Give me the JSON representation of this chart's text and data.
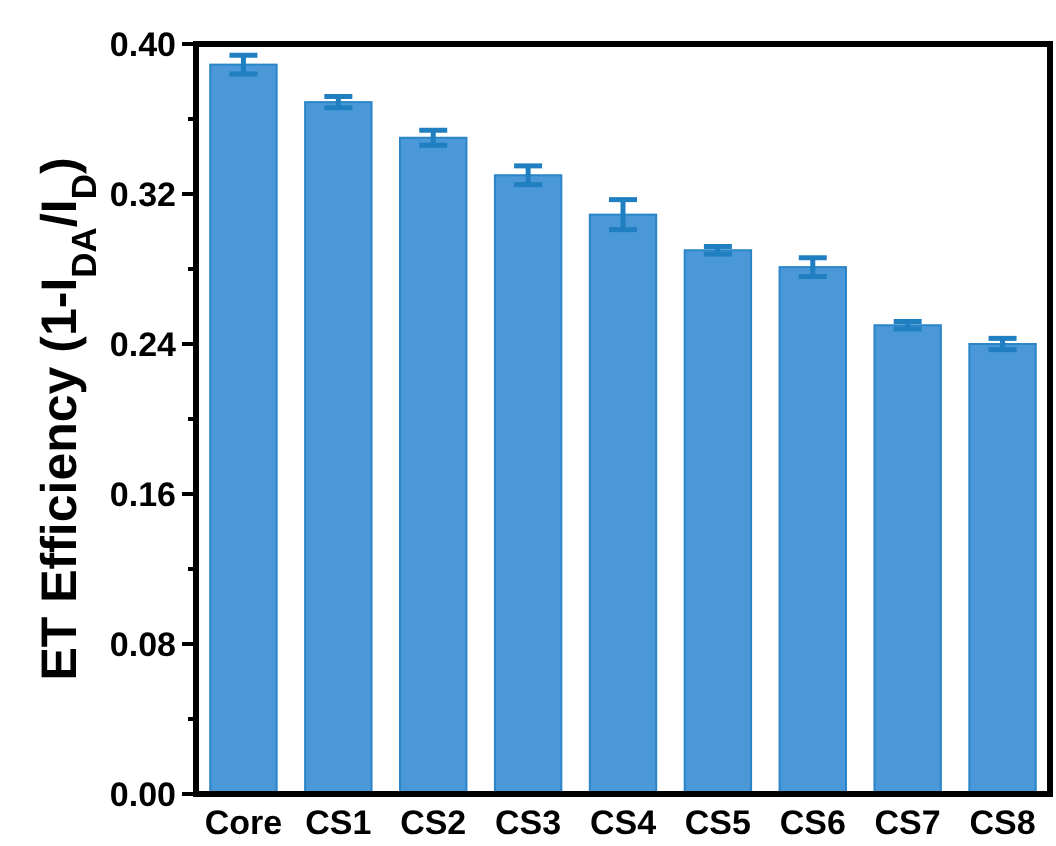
{
  "chart_data": {
    "type": "bar",
    "ylabel": "ET Efficiency (1-I$_{DA}$/I$_{D}$)",
    "categories": [
      "Core",
      "CS1",
      "CS2",
      "CS3",
      "CS4",
      "CS5",
      "CS6",
      "CS7",
      "CS8"
    ],
    "series": [
      {
        "color": "#4a98d8",
        "values": [
          0.389,
          0.369,
          0.35,
          0.33,
          0.309,
          0.29,
          0.281,
          0.25,
          0.24
        ],
        "errors": [
          0.005,
          0.003,
          0.004,
          0.005,
          0.008,
          0.002,
          0.005,
          0.002,
          0.003
        ]
      }
    ],
    "ylim": [
      0,
      0.4
    ],
    "yticks": [
      {
        "value": 0,
        "label": "0.00"
      },
      {
        "value": 0.04,
        "label": null
      },
      {
        "value": 0.08,
        "label": "0.08"
      },
      {
        "value": 0.12,
        "label": null
      },
      {
        "value": 0.16,
        "label": "0.16"
      },
      {
        "value": 0.2,
        "label": null
      },
      {
        "value": 0.24,
        "label": "0.24"
      },
      {
        "value": 0.28,
        "label": null
      },
      {
        "value": 0.32,
        "label": "0.32"
      },
      {
        "value": 0.36,
        "label": null
      },
      {
        "value": 0.4,
        "label": "0.40"
      }
    ],
    "grid": false
  }
}
